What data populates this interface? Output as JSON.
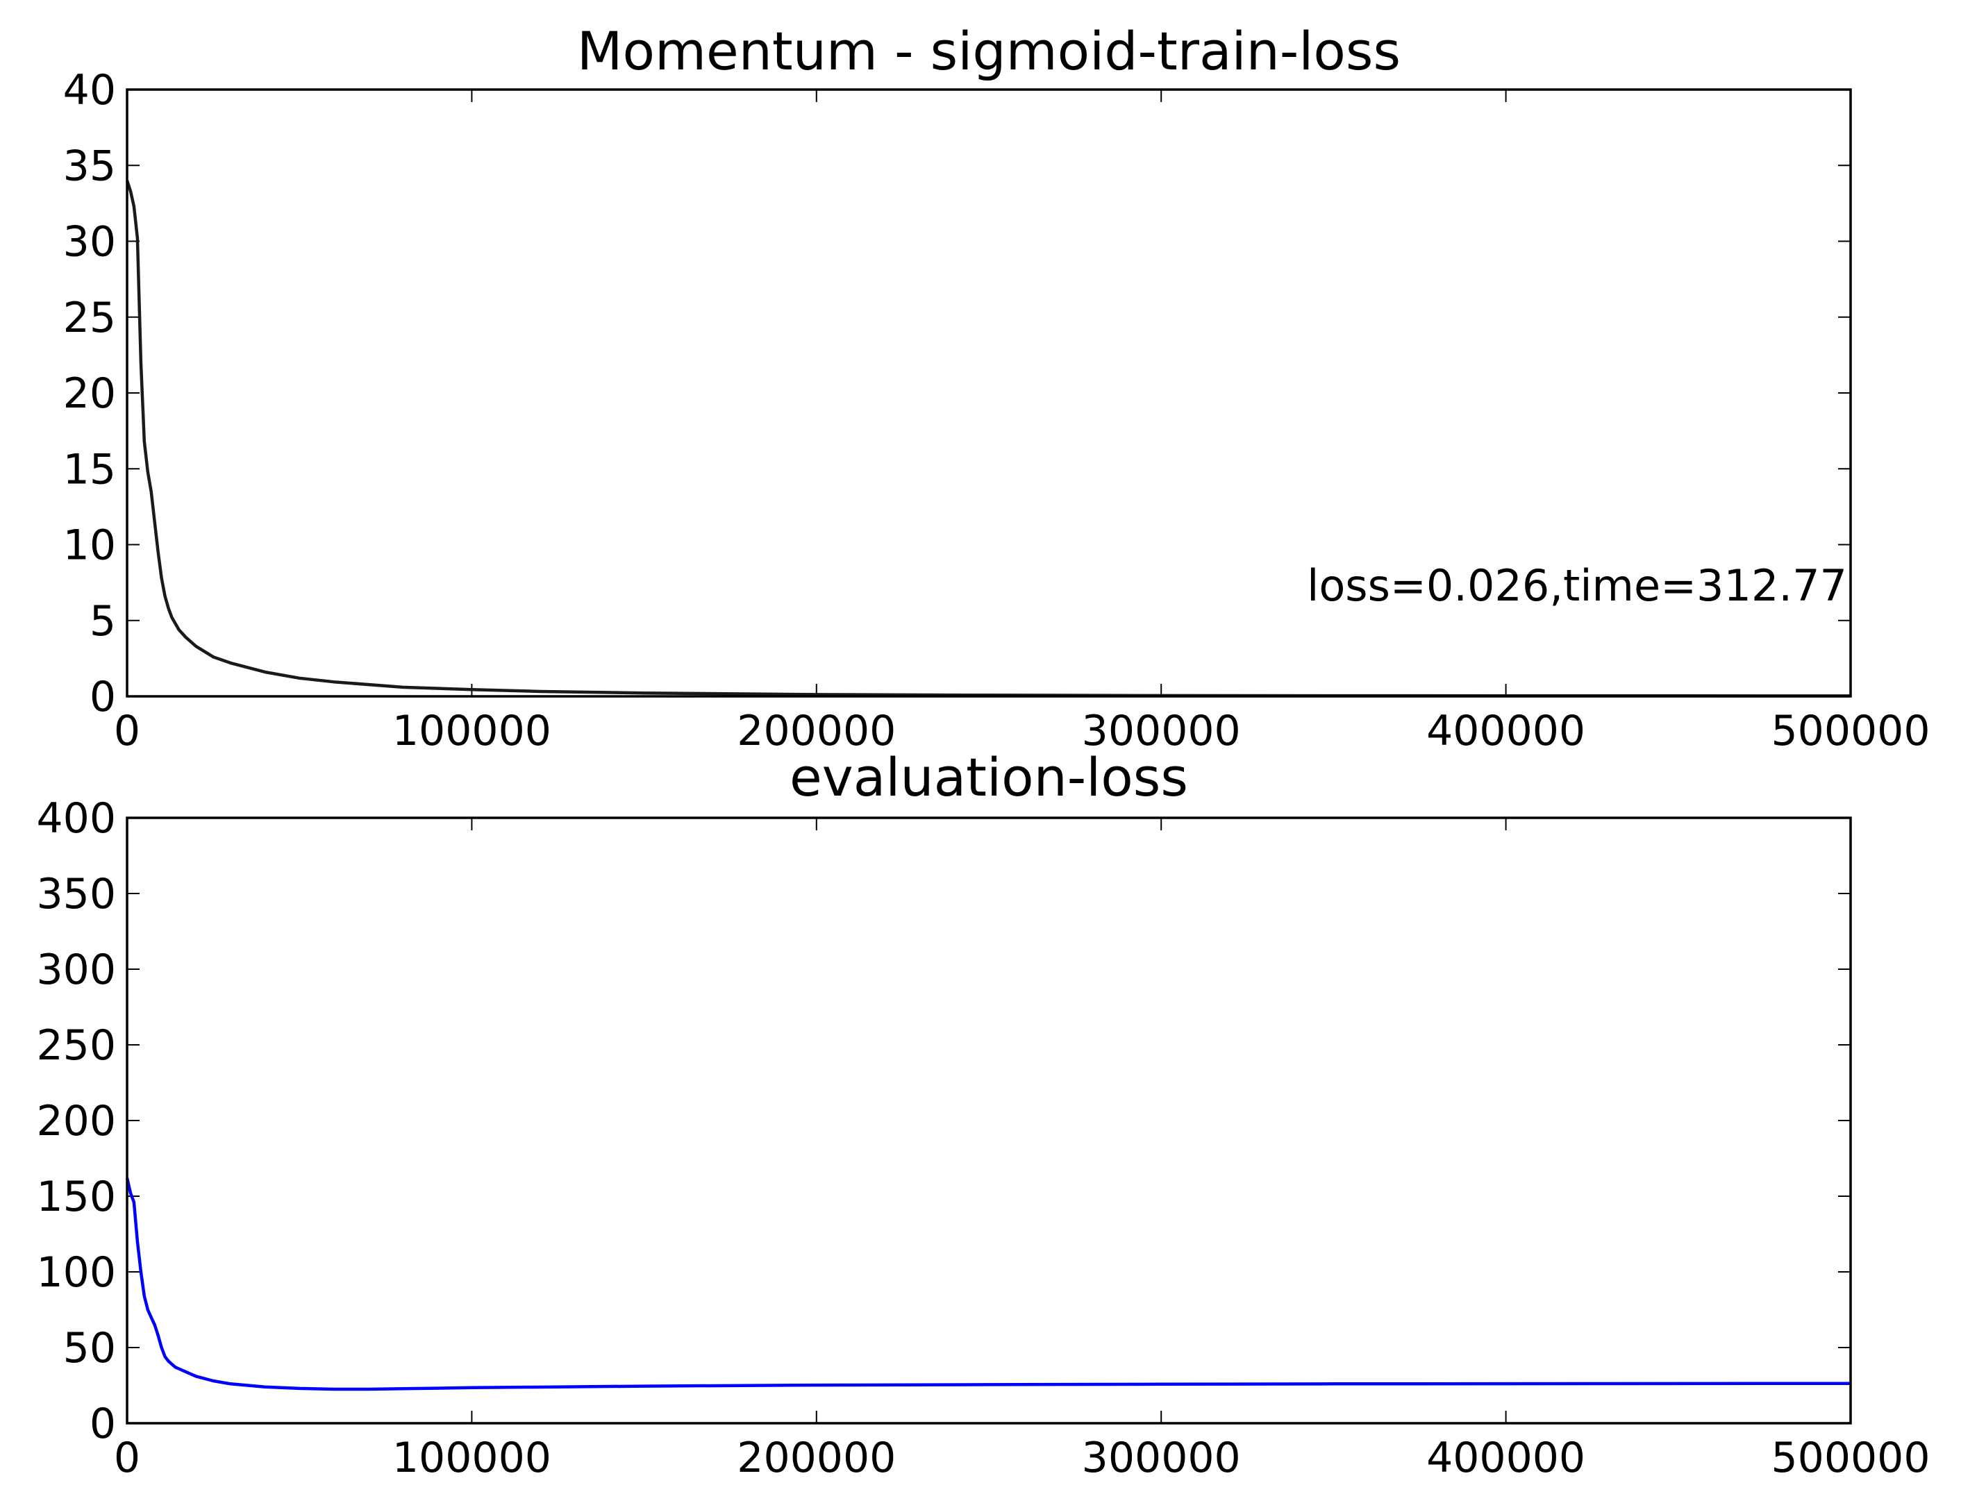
{
  "chart_data": [
    {
      "type": "line",
      "title": "Momentum - sigmoid-train-loss",
      "xlim": [
        0,
        500000
      ],
      "ylim": [
        0,
        40
      ],
      "x_ticks": [
        0,
        100000,
        200000,
        300000,
        400000,
        500000
      ],
      "x_tick_labels": [
        "0",
        "100000",
        "200000",
        "300000",
        "400000",
        "500000"
      ],
      "y_ticks": [
        0,
        5,
        10,
        15,
        20,
        25,
        30,
        35,
        40
      ],
      "y_tick_labels": [
        "0",
        "5",
        "10",
        "15",
        "20",
        "25",
        "30",
        "35",
        "40"
      ],
      "grid": false,
      "annotation": "loss=0.026,time=312.77",
      "series": [
        {
          "color": "#1a1a1a",
          "x": [
            0,
            1000,
            2000,
            3000,
            4000,
            5000,
            6000,
            7000,
            8000,
            9000,
            10000,
            11000,
            12000,
            13000,
            14000,
            15000,
            17000,
            20000,
            25000,
            30000,
            40000,
            50000,
            60000,
            80000,
            100000,
            120000,
            150000,
            200000,
            250000,
            300000,
            350000,
            400000,
            450000,
            500000
          ],
          "y": [
            34.0,
            33.3,
            32.3,
            30.2,
            22.0,
            16.8,
            14.8,
            13.5,
            11.5,
            9.5,
            7.8,
            6.6,
            5.8,
            5.2,
            4.8,
            4.4,
            3.9,
            3.3,
            2.6,
            2.2,
            1.6,
            1.2,
            0.95,
            0.6,
            0.45,
            0.32,
            0.22,
            0.12,
            0.08,
            0.05,
            0.04,
            0.035,
            0.03,
            0.026
          ]
        }
      ]
    },
    {
      "type": "line",
      "title": "evaluation-loss",
      "xlim": [
        0,
        500000
      ],
      "ylim": [
        0,
        400
      ],
      "x_ticks": [
        0,
        100000,
        200000,
        300000,
        400000,
        500000
      ],
      "x_tick_labels": [
        "0",
        "100000",
        "200000",
        "300000",
        "400000",
        "500000"
      ],
      "y_ticks": [
        0,
        50,
        100,
        150,
        200,
        250,
        300,
        350,
        400
      ],
      "y_tick_labels": [
        "0",
        "50",
        "100",
        "150",
        "200",
        "250",
        "300",
        "350",
        "400"
      ],
      "grid": false,
      "series": [
        {
          "color": "#0000ff",
          "x": [
            0,
            1000,
            2000,
            3000,
            4000,
            5000,
            6000,
            7000,
            8000,
            9000,
            10000,
            11000,
            12000,
            13000,
            14000,
            15000,
            17000,
            20000,
            25000,
            30000,
            40000,
            50000,
            60000,
            70000,
            80000,
            100000,
            150000,
            200000,
            250000,
            300000,
            350000,
            400000,
            450000,
            500000
          ],
          "y": [
            162,
            152,
            146,
            120,
            100,
            84,
            75,
            70,
            65,
            58,
            50,
            44,
            41,
            39,
            37,
            36,
            34,
            31,
            28,
            26,
            24,
            23,
            22.5,
            22.5,
            22.8,
            23.5,
            24.5,
            25.2,
            25.5,
            25.8,
            26,
            26.1,
            26.2,
            26.3
          ]
        }
      ]
    }
  ]
}
